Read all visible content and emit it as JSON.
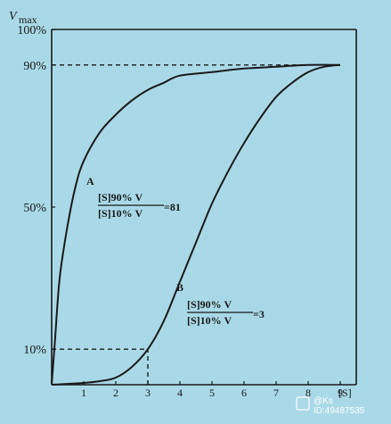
{
  "chart_data": {
    "type": "line",
    "ylabel": "V",
    "ylabel_sub": "max",
    "xlabel": "[S]",
    "xlim": [
      0,
      9.5
    ],
    "ylim": [
      0,
      100
    ],
    "x_ticks": [
      "1",
      "2",
      "3",
      "4",
      "5",
      "6",
      "7",
      "8",
      "9"
    ],
    "y_ticks": [
      {
        "label": "100%",
        "value": 100
      },
      {
        "label": "90%",
        "value": 90
      },
      {
        "label": "50%",
        "value": 50
      },
      {
        "label": "10%",
        "value": 10
      }
    ],
    "series": [
      {
        "name": "A",
        "x": [
          0,
          0.1,
          0.25,
          0.5,
          0.75,
          1,
          1.5,
          2,
          2.5,
          3,
          3.5,
          4,
          5,
          6,
          7,
          8,
          9
        ],
        "y": [
          0,
          12,
          30,
          45,
          56,
          63,
          71,
          76,
          80,
          83,
          85,
          87,
          88,
          89,
          89.5,
          90,
          90
        ]
      },
      {
        "name": "B",
        "x": [
          0,
          1,
          1.5,
          2,
          2.5,
          3,
          3.5,
          4,
          4.5,
          5,
          5.5,
          6,
          6.5,
          7,
          7.5,
          8,
          8.5,
          9
        ],
        "y": [
          0,
          0.5,
          1,
          2,
          5,
          10,
          18,
          29,
          40,
          51,
          60,
          68,
          75,
          81,
          85,
          88,
          89.5,
          90
        ]
      }
    ],
    "guides": [
      {
        "type": "h",
        "y": 90,
        "x_from": 0,
        "x_to": 9
      },
      {
        "type": "h",
        "y": 10,
        "x_from": 0,
        "x_to": 3
      },
      {
        "type": "v",
        "x": 3,
        "y_from": 0,
        "y_to": 10
      }
    ],
    "annotations": {
      "a_letter": "A",
      "a_num": "[S]90% V",
      "a_den": "[S]10% V",
      "a_eq": "=81",
      "b_letter": "B",
      "b_num": "[S]90% V",
      "b_den": "[S]10% V",
      "b_eq": "=3"
    }
  },
  "watermark": {
    "line1": "@Ks",
    "line2": "ID:49487535"
  }
}
